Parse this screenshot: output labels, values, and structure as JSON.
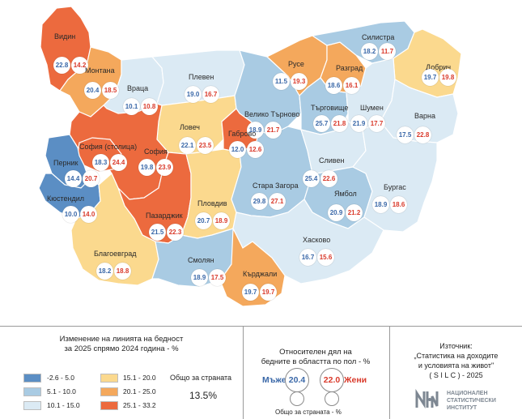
{
  "colors": {
    "bin1": "#5b8ec4",
    "bin2": "#a9cbe3",
    "bin3": "#dbeaf4",
    "bin4": "#fbd98e",
    "bin5": "#f4a85c",
    "bin6": "#ec6a3e",
    "male": "#3a68a8",
    "female": "#d93a2b"
  },
  "regions": [
    {
      "id": "vidin",
      "name": "Видин",
      "bin": 6,
      "m": "22.8",
      "f": "14.2"
    },
    {
      "id": "montana",
      "name": "Монтана",
      "bin": 5,
      "m": "20.4",
      "f": "18.5"
    },
    {
      "id": "vratsa",
      "name": "Враца",
      "bin": 3,
      "m": "10.1",
      "f": "10.8"
    },
    {
      "id": "pleven",
      "name": "Плевен",
      "bin": 3,
      "m": "19.0",
      "f": "16.7"
    },
    {
      "id": "lovech",
      "name": "Ловеч",
      "bin": 4,
      "m": "22.1",
      "f": "23.5"
    },
    {
      "id": "veliko",
      "name": "Велико Търново",
      "bin": 2,
      "m": "18.9",
      "f": "21.7"
    },
    {
      "id": "gabrovo",
      "name": "Габрово",
      "bin": 6,
      "m": "12.0",
      "f": "12.6"
    },
    {
      "id": "ruse",
      "name": "Русе",
      "bin": 5,
      "m": "11.5",
      "f": "19.3"
    },
    {
      "id": "razgrad",
      "name": "Разград",
      "bin": 5,
      "m": "18.6",
      "f": "16.1"
    },
    {
      "id": "silistra",
      "name": "Силистра",
      "bin": 2,
      "m": "18.2",
      "f": "11.7"
    },
    {
      "id": "dobrich",
      "name": "Добрич",
      "bin": 4,
      "m": "19.7",
      "f": "19.8"
    },
    {
      "id": "targovishte",
      "name": "Търговище",
      "bin": 2,
      "m": "25.7",
      "f": "21.8"
    },
    {
      "id": "shumen",
      "name": "Шумен",
      "bin": 3,
      "m": "21.9",
      "f": "17.7"
    },
    {
      "id": "varna",
      "name": "Варна",
      "bin": 3,
      "m": "17.5",
      "f": "22.8"
    },
    {
      "id": "sofia_city",
      "name": "София (столица)",
      "bin": 6,
      "m": "18.3",
      "f": "24.4"
    },
    {
      "id": "sofia",
      "name": "София",
      "bin": 6,
      "m": "19.8",
      "f": "23.9"
    },
    {
      "id": "pernik",
      "name": "Перник",
      "bin": 1,
      "m": "14.4",
      "f": "20.7"
    },
    {
      "id": "kyustendil",
      "name": "Кюстендил",
      "bin": 1,
      "m": "10.0",
      "f": "14.0"
    },
    {
      "id": "pazardzhik",
      "name": "Пазарджик",
      "bin": 6,
      "m": "21.5",
      "f": "22.3"
    },
    {
      "id": "plovdiv",
      "name": "Пловдив",
      "bin": 4,
      "m": "20.7",
      "f": "18.9"
    },
    {
      "id": "stara",
      "name": "Стара Загора",
      "bin": 2,
      "m": "29.8",
      "f": "27.1"
    },
    {
      "id": "sliven",
      "name": "Сливен",
      "bin": 3,
      "m": "25.4",
      "f": "22.6"
    },
    {
      "id": "yambol",
      "name": "Ямбол",
      "bin": 2,
      "m": "20.9",
      "f": "21.2"
    },
    {
      "id": "burgas",
      "name": "Бургас",
      "bin": 3,
      "m": "18.9",
      "f": "18.6"
    },
    {
      "id": "blagoevgrad",
      "name": "Благоевград",
      "bin": 4,
      "m": "18.2",
      "f": "18.8"
    },
    {
      "id": "smolyan",
      "name": "Смолян",
      "bin": 2,
      "m": "18.9",
      "f": "17.5"
    },
    {
      "id": "haskovo",
      "name": "Хасково",
      "bin": 3,
      "m": "16.7",
      "f": "15.6"
    },
    {
      "id": "kardzhali",
      "name": "Кърджали",
      "bin": 5,
      "m": "19.7",
      "f": "19.7"
    }
  ],
  "legend": {
    "title_line1": "Изменение на линията на бедност",
    "title_line2": "за 2025 спрямо 2024 година - %",
    "items": [
      {
        "label": "-2.6  -  5.0",
        "bin": 1
      },
      {
        "label": "5.1  -  10.0",
        "bin": 2
      },
      {
        "label": "10.1  -  15.0",
        "bin": 3
      },
      {
        "label": "15.1  -  20.0",
        "bin": 4
      },
      {
        "label": "20.1  -  25.0",
        "bin": 5
      },
      {
        "label": "25.1  -  33.2",
        "bin": 6
      }
    ],
    "country_label": "Общо за страната",
    "country_value": "13.5%"
  },
  "gender": {
    "title_line1": "Относителен дял на",
    "title_line2": "бедните в областта по пол - %",
    "male_label": "Мъже",
    "male_value": "20.4",
    "female_label": "Жени",
    "female_value": "22.0",
    "note": "Общо за страната - %"
  },
  "source": {
    "line1": "Източник:",
    "line2": "„Статистика на доходите",
    "line3": "и условията на живот\"",
    "line4": "( S I L C ) - 2025"
  },
  "logo": {
    "line1": "НАЦИОНАЛЕН",
    "line2": "СТАТИСТИЧЕСКИ",
    "line3": "ИНСТИТУТ"
  }
}
